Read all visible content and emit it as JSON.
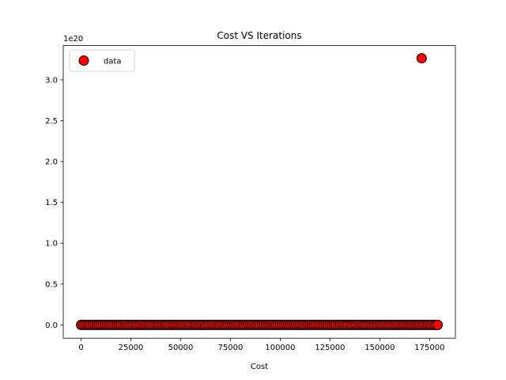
{
  "chart_data": {
    "type": "scatter",
    "title": "Cost VS Iterations",
    "xlabel": "Cost",
    "ylabel": "",
    "y_offset_label": "1e20",
    "xlim": [
      -8950,
      187950
    ],
    "ylim": [
      -1.63e+19,
      3.42e+20
    ],
    "x_ticks": [
      0,
      25000,
      50000,
      75000,
      100000,
      125000,
      150000,
      175000
    ],
    "x_tick_labels": [
      "0",
      "25000",
      "50000",
      "75000",
      "100000",
      "125000",
      "150000",
      "175000"
    ],
    "y_ticks": [
      0,
      5e+19,
      1e+20,
      1.5e+20,
      2e+20,
      2.5e+20,
      3e+20
    ],
    "y_tick_labels": [
      "0.0",
      "0.5",
      "1.0",
      "1.5",
      "2.0",
      "2.5",
      "3.0"
    ],
    "grid": false,
    "legend": {
      "position": "upper-left",
      "entries": [
        "data"
      ]
    },
    "series": [
      {
        "name": "data",
        "color": "#ff0000",
        "edgecolor": "#000000",
        "dense_range": {
          "x_start": 0,
          "x_end": 179000,
          "y": 0,
          "count": 180
        },
        "points": [
          {
            "x": 171000,
            "y": 3.265e+20
          },
          {
            "x": 179000,
            "y": 0
          }
        ]
      }
    ]
  }
}
